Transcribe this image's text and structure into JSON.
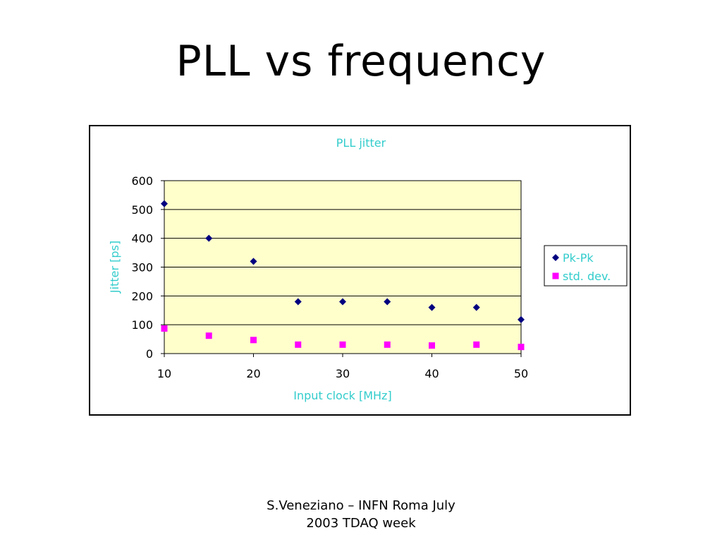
{
  "slide": {
    "title": "PLL vs frequency",
    "footer_line1": "S.Veneziano – INFN Roma July",
    "footer_line2": "2003 TDAQ week"
  },
  "colors": {
    "plot_bg": "#ffffcc",
    "label_text": "#33cccc",
    "series_pkpk": "#000080",
    "series_std": "#ff00ff"
  },
  "chart_data": {
    "type": "scatter",
    "title": "PLL jitter",
    "xlabel": "Input clock [MHz]",
    "ylabel": "Jitter [ps]",
    "xlim": [
      10,
      50
    ],
    "ylim": [
      0,
      600
    ],
    "x_ticks": [
      "10",
      "20",
      "30",
      "40",
      "50"
    ],
    "y_ticks": [
      "0",
      "100",
      "200",
      "300",
      "400",
      "500",
      "600"
    ],
    "grid": "horizontal",
    "legend_position": "right",
    "series": [
      {
        "name": "Pk-Pk",
        "marker": "diamond",
        "points": [
          [
            10,
            520
          ],
          [
            15,
            400
          ],
          [
            20,
            320
          ],
          [
            25,
            180
          ],
          [
            30,
            180
          ],
          [
            35,
            180
          ],
          [
            40,
            160
          ],
          [
            45,
            160
          ],
          [
            50,
            118
          ]
        ]
      },
      {
        "name": "std. dev.",
        "marker": "square",
        "points": [
          [
            10,
            87
          ],
          [
            15,
            62
          ],
          [
            20,
            47
          ],
          [
            25,
            31
          ],
          [
            30,
            31
          ],
          [
            35,
            31
          ],
          [
            40,
            28
          ],
          [
            45,
            31
          ],
          [
            50,
            23
          ]
        ]
      }
    ]
  }
}
